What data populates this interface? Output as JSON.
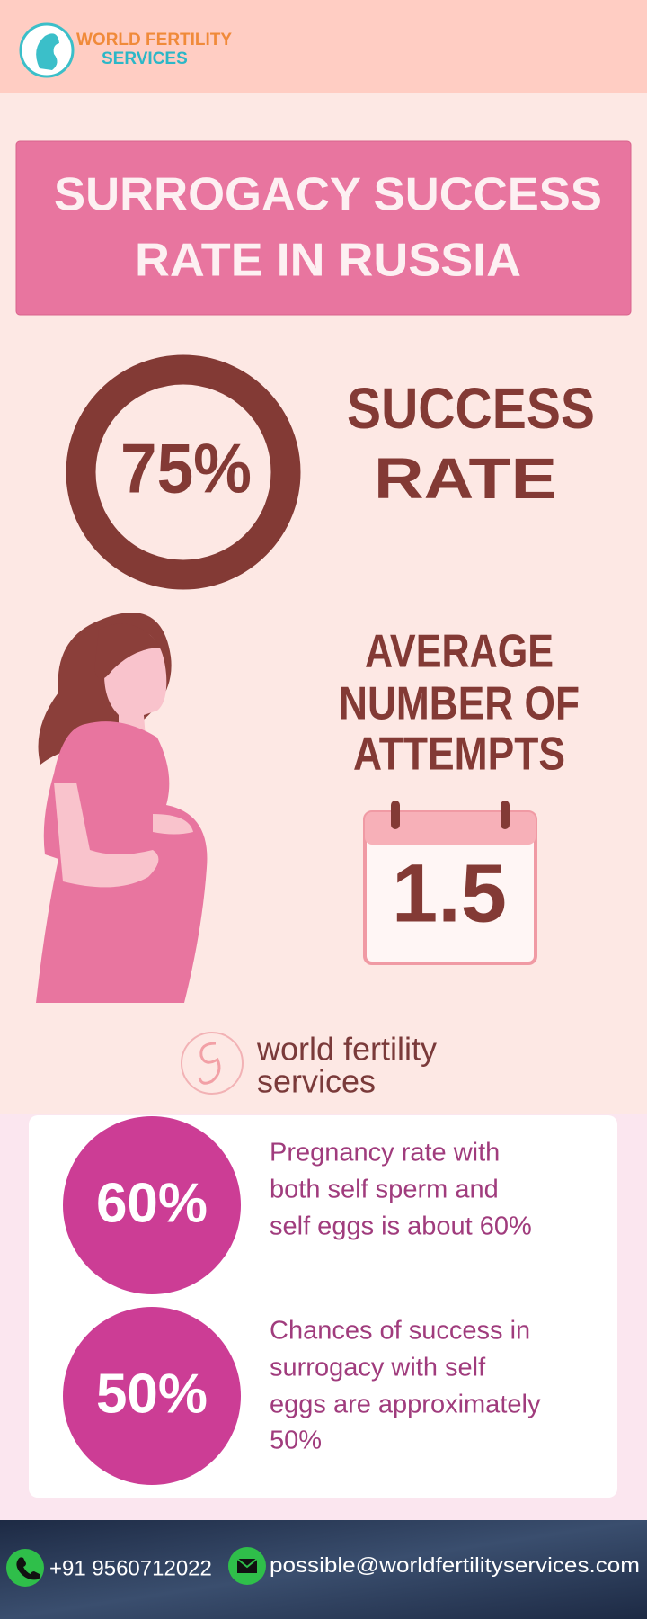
{
  "header": {
    "logo_lines": [
      "WORLD FERTILITY",
      "SERVICES"
    ]
  },
  "title": {
    "lines": [
      "SURROGACY SUCCESS",
      "RATE IN RUSSIA"
    ]
  },
  "success": {
    "value": "75%",
    "label_lines": [
      "SUCCESS",
      "RATE"
    ]
  },
  "attempts": {
    "label_lines": [
      "AVERAGE",
      "NUMBER OF",
      "ATTEMPTS"
    ],
    "value": "1.5"
  },
  "brand": {
    "lines": [
      "world fertility",
      "services"
    ]
  },
  "stats": [
    {
      "value": "60%",
      "lines": [
        "Pregnancy rate with",
        "both self sperm and",
        "self eggs is about 60%"
      ]
    },
    {
      "value": "50%",
      "lines": [
        "Chances of success in",
        "surrogacy with self",
        "eggs are approximately",
        "50%"
      ]
    }
  ],
  "footer": {
    "phone": "+91 9560712022",
    "email": "possible@worldfertilityservices.com"
  }
}
